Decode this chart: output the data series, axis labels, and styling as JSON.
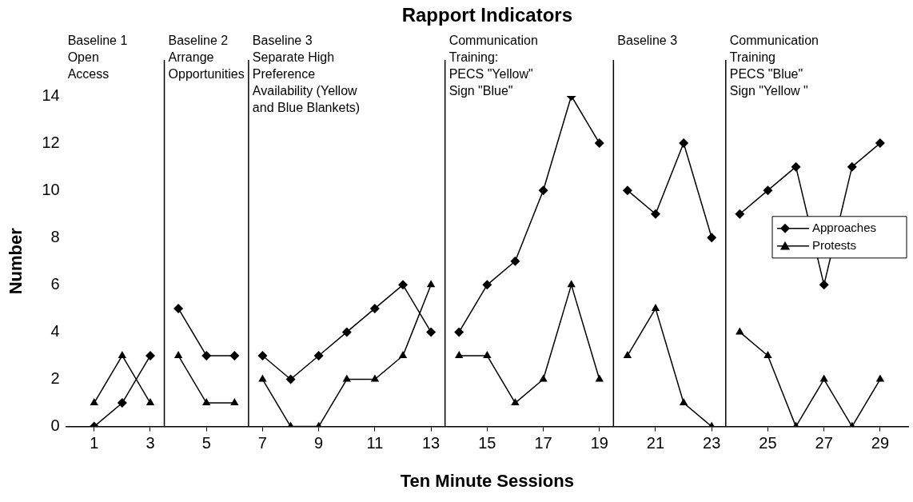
{
  "chart_data": {
    "type": "line",
    "title": "Rapport Indicators",
    "xlabel": "Ten Minute Sessions",
    "ylabel": "Number",
    "x": [
      1,
      2,
      3,
      3.5,
      4,
      5,
      6,
      6.5,
      7,
      8,
      9,
      10,
      11,
      12,
      13,
      13.5,
      14,
      15,
      16,
      17,
      18,
      19,
      19.5,
      20,
      21,
      22,
      23,
      23.5,
      24,
      25,
      26,
      27,
      28,
      29
    ],
    "series": [
      {
        "name": "Approaches",
        "color": "#000000",
        "marker": "diamond",
        "values": [
          0,
          1,
          3,
          null,
          5,
          3,
          3,
          null,
          3,
          2,
          3,
          4,
          5,
          6,
          4,
          null,
          4,
          6,
          7,
          10,
          14,
          12,
          null,
          10,
          9,
          12,
          8,
          null,
          9,
          10,
          11,
          6,
          11,
          12
        ]
      },
      {
        "name": "Protests",
        "color": "#000000",
        "marker": "triangle",
        "values": [
          1,
          3,
          1,
          null,
          3,
          1,
          1,
          null,
          2,
          0,
          0,
          2,
          2,
          3,
          6,
          null,
          3,
          3,
          1,
          2,
          6,
          2,
          null,
          3,
          5,
          1,
          0,
          null,
          4,
          3,
          0,
          2,
          0,
          2
        ]
      }
    ],
    "xlim": [
      0,
      30
    ],
    "xticks": [
      1,
      3,
      5,
      7,
      9,
      11,
      13,
      15,
      17,
      19,
      21,
      23,
      25,
      27,
      29
    ],
    "ylim": [
      0,
      14
    ],
    "yticks": [
      0,
      2,
      4,
      6,
      8,
      10,
      12,
      14
    ],
    "ref_lines": [
      {
        "axis": "x",
        "value": 3.5,
        "color": "#000000"
      },
      {
        "axis": "x",
        "value": 6.5,
        "color": "#000000"
      },
      {
        "axis": "x",
        "value": 13.5,
        "color": "#000000"
      },
      {
        "axis": "x",
        "value": 19.5,
        "color": "#000000"
      },
      {
        "axis": "x",
        "value": 23.5,
        "color": "#000000"
      }
    ],
    "annotations": [
      "Baseline 1\nOpen\nAccess",
      "Baseline 2\nArrange\nOpportunities",
      "Baseline 3\nSeparate High\nPreference\nAvailability (Yellow\nand Blue Blankets)",
      "Communication\nTraining:\nPECS \"Yellow\"\nSign \"Blue\"",
      "Baseline 3",
      "Communication\nTraining\nPECS \"Blue\"\nSign \"Yellow \""
    ],
    "grid": false,
    "legend": "right",
    "line_style": "solid"
  }
}
